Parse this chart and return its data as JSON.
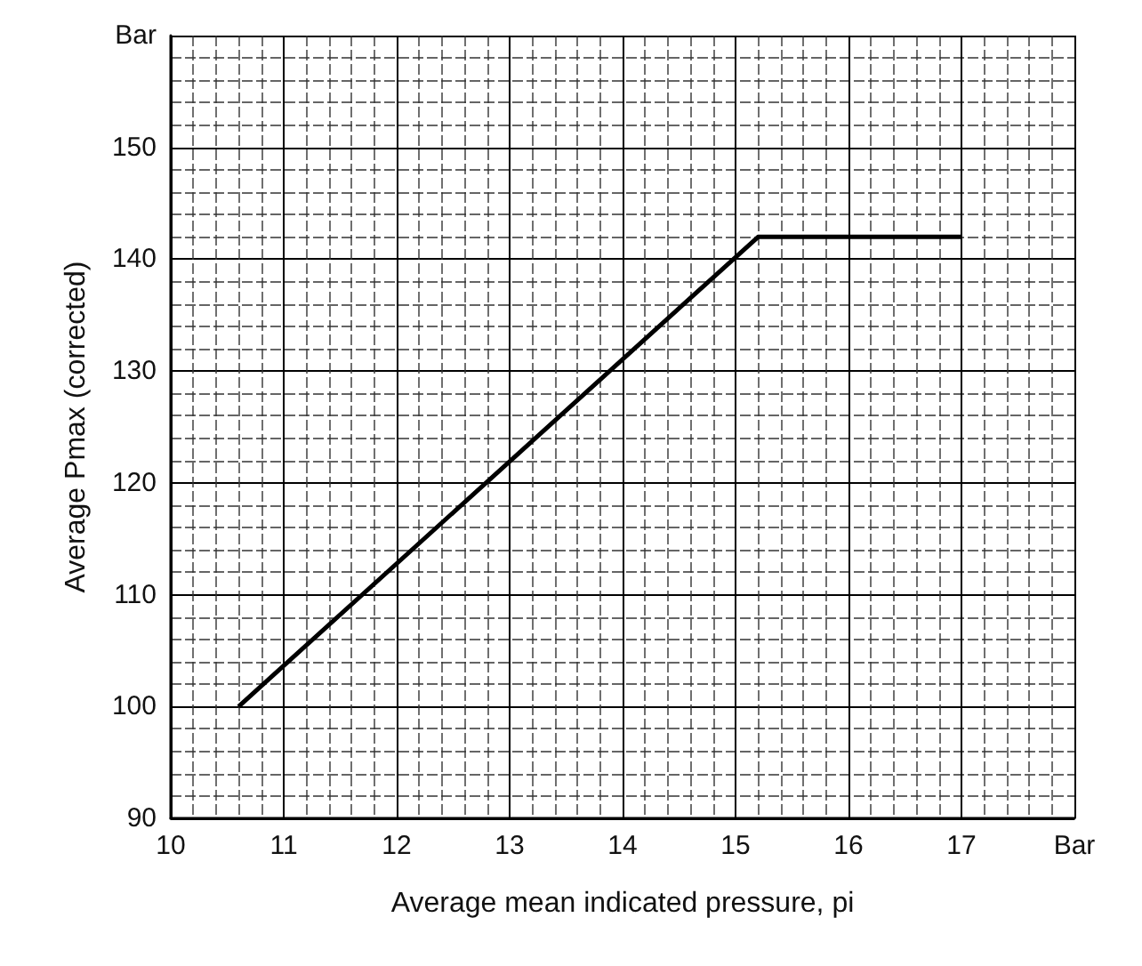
{
  "chart_data": {
    "type": "line",
    "xlabel": "Average mean indicated pressure, pi",
    "ylabel": "Average Pmax (corrected)",
    "xlim": [
      10,
      18
    ],
    "xticks": [
      10,
      11,
      12,
      13,
      14,
      15,
      16,
      17,
      {
        "value": 18,
        "label": "Bar"
      }
    ],
    "ylim": [
      90,
      160
    ],
    "yticks": [
      90,
      100,
      110,
      120,
      130,
      140,
      150,
      {
        "value": 160,
        "label": "Bar"
      }
    ],
    "series": [
      {
        "color": "#000000",
        "x": [
          10.6,
          15.2,
          17
        ],
        "values": [
          100,
          142,
          142
        ]
      }
    ],
    "grid": true,
    "marker": "none",
    "line_style": "solid"
  }
}
